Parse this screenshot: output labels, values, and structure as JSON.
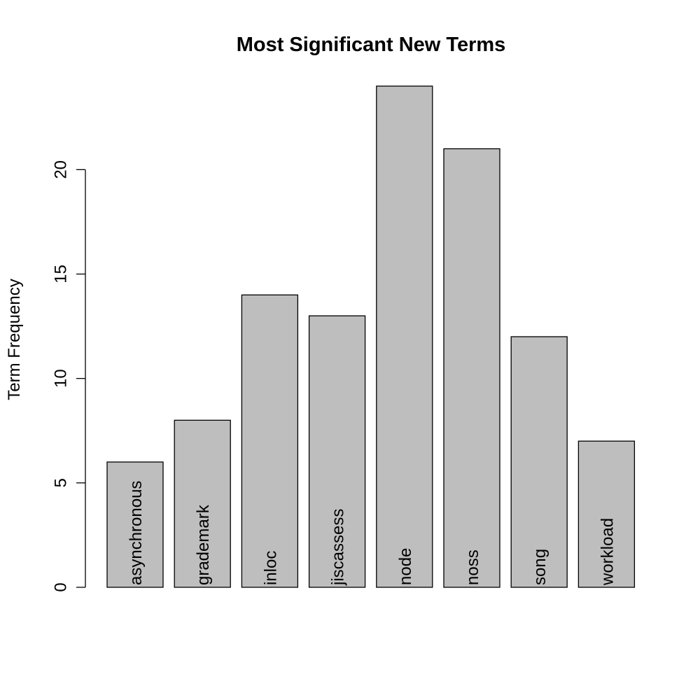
{
  "chart_data": {
    "type": "bar",
    "title": "Most Significant New Terms",
    "xlabel": "",
    "ylabel": "Term Frequency",
    "categories": [
      "asynchronous",
      "grademark",
      "inloc",
      "jiscassess",
      "node",
      "noss",
      "song",
      "workload"
    ],
    "values": [
      6,
      8,
      14,
      13,
      24,
      21,
      12,
      7
    ],
    "ylim": [
      0,
      24
    ],
    "yticks": [
      0,
      5,
      10,
      15,
      20
    ],
    "bar_color": "#bebebe",
    "grid": false,
    "legend": "none"
  }
}
